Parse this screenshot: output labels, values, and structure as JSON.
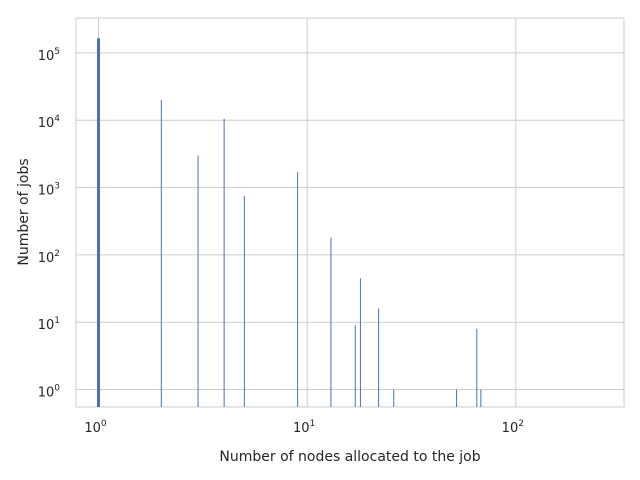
{
  "chart_data": {
    "type": "bar",
    "title": "",
    "xlabel": "Number of nodes allocated to the job",
    "ylabel": "Number of jobs",
    "x_scale": "log",
    "y_scale": "log",
    "xlim": [
      0.78,
      330
    ],
    "ylim": [
      0.55,
      330000
    ],
    "grid": true,
    "bar_color": "#4c72b0",
    "x_ticks": [
      {
        "base": "10",
        "exp": "0",
        "value": 1
      },
      {
        "base": "10",
        "exp": "1",
        "value": 10
      },
      {
        "base": "10",
        "exp": "2",
        "value": 100
      }
    ],
    "y_ticks": [
      {
        "base": "10",
        "exp": "0",
        "value": 1
      },
      {
        "base": "10",
        "exp": "1",
        "value": 10
      },
      {
        "base": "10",
        "exp": "2",
        "value": 100
      },
      {
        "base": "10",
        "exp": "3",
        "value": 1000
      },
      {
        "base": "10",
        "exp": "4",
        "value": 10000
      },
      {
        "base": "10",
        "exp": "5",
        "value": 100000
      }
    ],
    "points": [
      {
        "x": 1,
        "y": 165000
      },
      {
        "x": 2,
        "y": 20000
      },
      {
        "x": 3,
        "y": 3000
      },
      {
        "x": 4,
        "y": 10500
      },
      {
        "x": 5,
        "y": 750
      },
      {
        "x": 9,
        "y": 1700
      },
      {
        "x": 13,
        "y": 180
      },
      {
        "x": 17,
        "y": 9
      },
      {
        "x": 18,
        "y": 45
      },
      {
        "x": 22,
        "y": 16
      },
      {
        "x": 26,
        "y": 1
      },
      {
        "x": 52,
        "y": 1
      },
      {
        "x": 65,
        "y": 8
      },
      {
        "x": 68,
        "y": 1
      }
    ]
  }
}
